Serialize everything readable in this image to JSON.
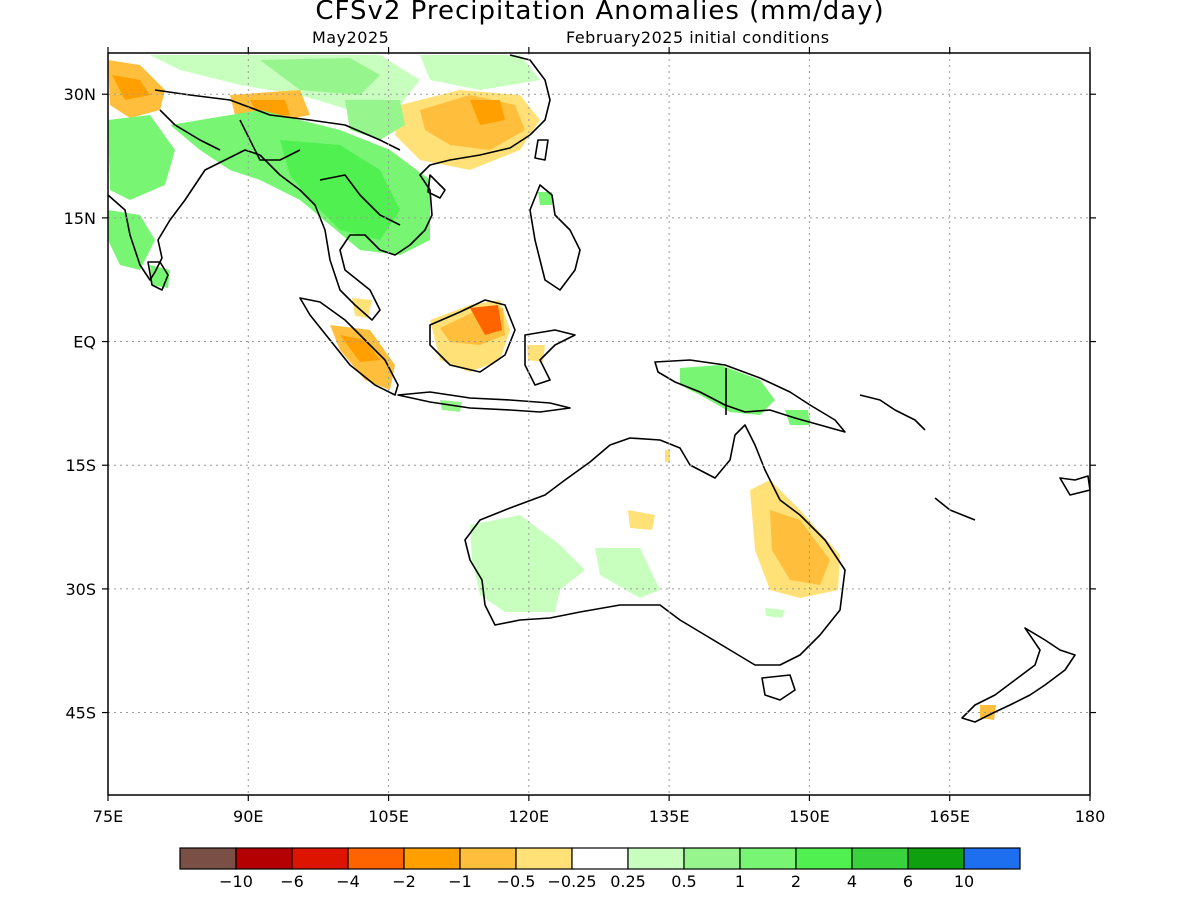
{
  "title": "CFSv2 Precipitation Anomalies (mm/day)",
  "subtitle_left": "May2025",
  "subtitle_right": "February2025 initial conditions",
  "map": {
    "lon_range": [
      75,
      180
    ],
    "lat_range": [
      -55,
      35
    ],
    "lat_ticks": [
      {
        "value": 30,
        "label": "30N"
      },
      {
        "value": 15,
        "label": "15N"
      },
      {
        "value": 0,
        "label": "EQ"
      },
      {
        "value": -15,
        "label": "15S"
      },
      {
        "value": -30,
        "label": "30S"
      },
      {
        "value": -45,
        "label": "45S"
      }
    ],
    "lon_ticks": [
      {
        "value": 75,
        "label": "75E"
      },
      {
        "value": 90,
        "label": "90E"
      },
      {
        "value": 105,
        "label": "105E"
      },
      {
        "value": 120,
        "label": "120E"
      },
      {
        "value": 135,
        "label": "135E"
      },
      {
        "value": 150,
        "label": "150E"
      },
      {
        "value": 165,
        "label": "165E"
      },
      {
        "value": 180,
        "label": "180"
      }
    ],
    "grid": true,
    "coastline_color": "#000000"
  },
  "colorbar": {
    "colors": [
      "#7a4f45",
      "#b40000",
      "#dc1400",
      "#ff6400",
      "#ffa000",
      "#ffbe3c",
      "#ffe178",
      "#ffffff",
      "#c8ffbe",
      "#96f58c",
      "#78f573",
      "#50f050",
      "#37d23c",
      "#0fa00f",
      "#1e6ef0"
    ],
    "labels": [
      "-10",
      "-6",
      "-4",
      "-2",
      "-1",
      "-0.5",
      "-0.25",
      "0.25",
      "0.5",
      "1",
      "2",
      "4",
      "6",
      "10"
    ]
  },
  "legend_colors": {
    "wet_light": "#c8ffbe",
    "wet_mid": "#78f573",
    "dry_light": "#ffe178",
    "dry_mid": "#ffbe3c",
    "dry_strong": "#ffa000",
    "dry_darker": "#ff6400"
  }
}
